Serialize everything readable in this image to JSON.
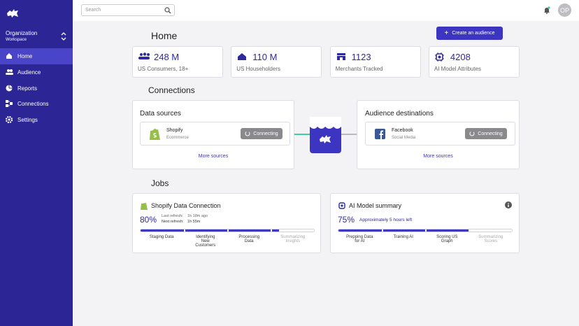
{
  "sidebar": {
    "org": "Organization",
    "workspace": "Workspace",
    "nav": [
      "Home",
      "Audience",
      "Reports",
      "Connections",
      "Settings"
    ]
  },
  "topbar": {
    "search_placeholder": "Search",
    "avatar": "OP"
  },
  "header": {
    "title": "Home",
    "button": "Create an audience"
  },
  "stats": [
    {
      "value": "248 M",
      "label": "US Consumers, 18+"
    },
    {
      "value": "110 M",
      "label": "US Householders"
    },
    {
      "value": "1123",
      "label": "Merchants Tracked"
    },
    {
      "value": "4208",
      "label": "AI Model Attributes"
    }
  ],
  "connections": {
    "title": "Connections",
    "sources": {
      "title": "Data sources",
      "item": {
        "name": "Shopify",
        "category": "Ecommerce",
        "status": "Connecting"
      },
      "more": "More sources"
    },
    "destinations": {
      "title": "Audience destinations",
      "item": {
        "name": "Facebook",
        "category": "Social Media",
        "status": "Connecting"
      },
      "more": "More sources"
    }
  },
  "jobs": {
    "title": "Jobs",
    "cards": [
      {
        "title": "Shopify Data Connection",
        "progress": {
          "value": 80,
          "label": "80%"
        },
        "last_refresh_label": "Last refresh:",
        "last_refresh": "1h 18m ago",
        "next_refresh_label": "Next refresh:",
        "next_refresh": "1h 55m",
        "steps": [
          "Staging Data",
          "Identifying New Customers",
          "Processing Data",
          "Summarizing Insights"
        ]
      },
      {
        "title": "AI Model summary",
        "progress": {
          "value": 75,
          "label": "75%"
        },
        "eta": "Approximately 5 hours left",
        "steps": [
          "Prepping Data for AI",
          "Training AI",
          "Scoring US Graph",
          "Summarizing Scores"
        ]
      }
    ]
  }
}
